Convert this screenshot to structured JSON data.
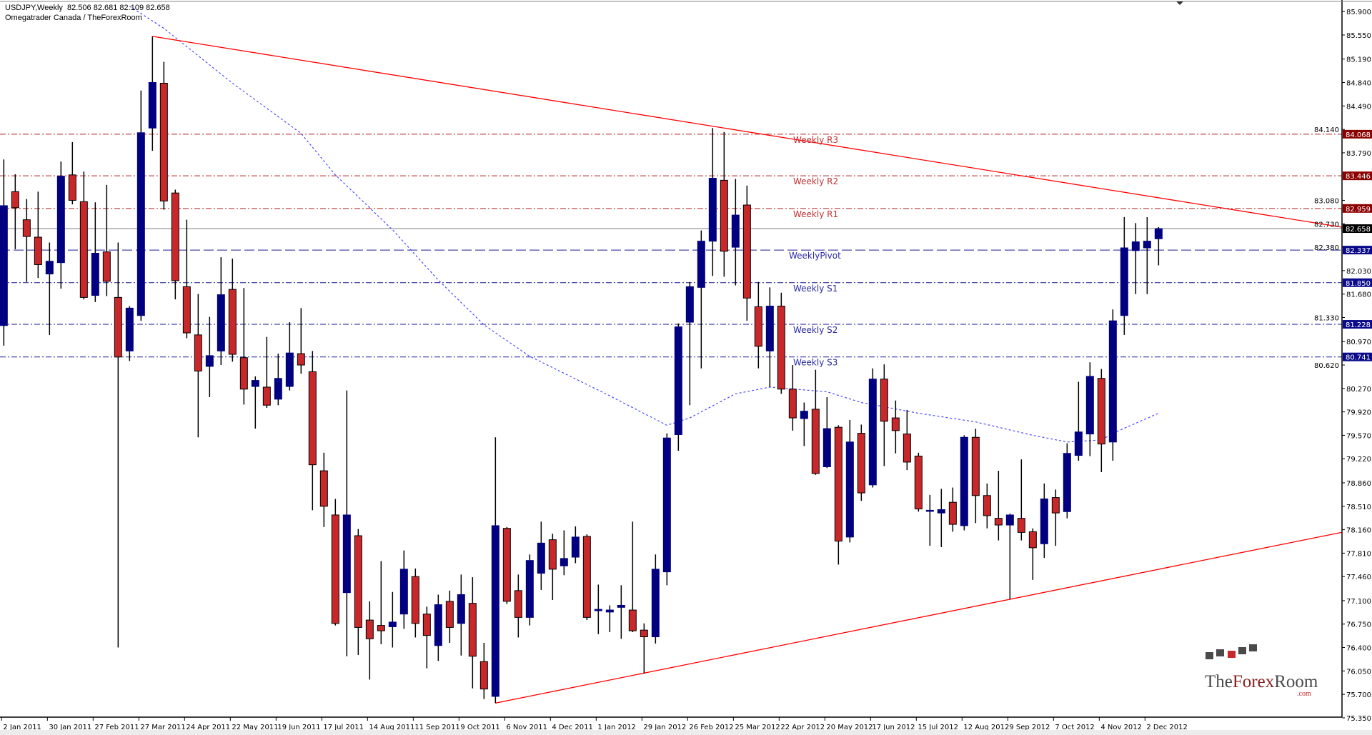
{
  "header": {
    "line1": "USDJPY,Weekly  82.506 82.681 82.109 82.658",
    "line2": "Omegatrader Canada / TheForexRoom"
  },
  "colors": {
    "bull": "#000080",
    "bear": "#c8282a",
    "wick": "#000000",
    "resistance": "#b22222",
    "resistance_label_bg": "#8b0000",
    "support": "#1a1a9a",
    "support_label_bg": "#0a0a8a",
    "ma": "#4a4aff",
    "trendline": "#ff0000",
    "current_price": "#808080"
  },
  "logo": {
    "text_a": "The",
    "text_b": "Forex",
    "text_c": "Room",
    "suffix": ".com"
  },
  "chart_data": {
    "type": "candlestick",
    "symbol": "USDJPY",
    "timeframe": "Weekly",
    "ylim": [
      75.36,
      86.03
    ],
    "grid": false,
    "y_ticks": [
      "85.900",
      "85.550",
      "85.190",
      "84.840",
      "84.490",
      "84.140",
      "83.790",
      "83.080",
      "82.730",
      "82.380",
      "82.030",
      "81.680",
      "81.330",
      "80.970",
      "80.620",
      "80.270",
      "79.920",
      "79.570",
      "79.220",
      "78.860",
      "78.510",
      "78.160",
      "77.810",
      "77.460",
      "77.100",
      "76.750",
      "76.400",
      "76.050",
      "75.700",
      "75.350"
    ],
    "x_ticks": [
      "2 Jan 2011",
      "30 Jan 2011",
      "27 Feb 2011",
      "27 Mar 2011",
      "24 Apr 2011",
      "22 May 2011",
      "19 Jun 2011",
      "17 Jul 2011",
      "14 Aug 2011",
      "11 Sep 2011",
      "9 Oct 2011",
      "6 Nov 2011",
      "4 Dec 2011",
      "1 Jan 2012",
      "29 Jan 2012",
      "26 Feb 2012",
      "25 Mar 2012",
      "22 Apr 2012",
      "20 May 2012",
      "17 Jun 2012",
      "15 Jul 2012",
      "12 Aug 2012",
      "9 Sep 2012",
      "7 Oct 2012",
      "4 Nov 2012",
      "2 Dec 2012"
    ],
    "candle_fields": [
      "date",
      "open",
      "high",
      "low",
      "close"
    ],
    "candles": [
      [
        "2011-01-02",
        81.21,
        83.69,
        80.91,
        83.0
      ],
      [
        "2011-01-09",
        83.21,
        83.47,
        82.35,
        82.97
      ],
      [
        "2011-01-16",
        82.79,
        83.1,
        81.86,
        82.54
      ],
      [
        "2011-01-23",
        82.53,
        83.21,
        81.92,
        82.12
      ],
      [
        "2011-01-30",
        81.98,
        82.45,
        81.07,
        82.17
      ],
      [
        "2011-02-06",
        82.15,
        83.66,
        81.76,
        83.44
      ],
      [
        "2011-02-13",
        83.46,
        83.95,
        83.02,
        83.08
      ],
      [
        "2011-02-20",
        83.06,
        83.51,
        81.6,
        81.63
      ],
      [
        "2011-02-27",
        81.66,
        83.05,
        81.56,
        82.29
      ],
      [
        "2011-03-06",
        82.31,
        83.31,
        81.65,
        81.87
      ],
      [
        "2011-03-13",
        81.63,
        82.45,
        76.4,
        80.74
      ],
      [
        "2011-03-20",
        80.83,
        81.5,
        80.68,
        81.47
      ],
      [
        "2011-03-27",
        81.36,
        84.72,
        81.28,
        84.09
      ],
      [
        "2011-04-03",
        84.16,
        85.53,
        83.82,
        84.84
      ],
      [
        "2011-04-10",
        84.83,
        85.15,
        82.94,
        83.07
      ],
      [
        "2011-04-17",
        83.19,
        83.24,
        81.6,
        81.88
      ],
      [
        "2011-04-24",
        81.79,
        82.79,
        81.02,
        81.1
      ],
      [
        "2011-05-01",
        81.07,
        81.68,
        79.54,
        80.53
      ],
      [
        "2011-05-08",
        80.6,
        81.34,
        80.14,
        80.76
      ],
      [
        "2011-05-15",
        80.83,
        82.23,
        80.62,
        81.67
      ],
      [
        "2011-05-22",
        81.75,
        82.21,
        80.67,
        80.78
      ],
      [
        "2011-05-29",
        80.73,
        81.77,
        80.03,
        80.26
      ],
      [
        "2011-06-05",
        80.3,
        80.45,
        79.67,
        80.39
      ],
      [
        "2011-06-12",
        80.29,
        81.04,
        79.98,
        80.02
      ],
      [
        "2011-06-19",
        80.11,
        80.79,
        80.02,
        80.42
      ],
      [
        "2011-06-26",
        80.3,
        81.26,
        80.24,
        80.8
      ],
      [
        "2011-07-03",
        80.79,
        81.47,
        80.49,
        80.62
      ],
      [
        "2011-07-10",
        80.52,
        80.83,
        78.45,
        79.13
      ],
      [
        "2011-07-17",
        79.04,
        79.31,
        78.2,
        78.51
      ],
      [
        "2011-07-24",
        78.38,
        78.62,
        76.73,
        76.76
      ],
      [
        "2011-07-31",
        77.22,
        80.24,
        76.27,
        78.38
      ],
      [
        "2011-08-07",
        78.07,
        78.17,
        76.29,
        76.7
      ],
      [
        "2011-08-14",
        76.81,
        77.09,
        75.92,
        76.53
      ],
      [
        "2011-08-21",
        76.73,
        77.69,
        76.45,
        76.65
      ],
      [
        "2011-08-28",
        76.71,
        77.23,
        76.4,
        76.78
      ],
      [
        "2011-09-04",
        76.9,
        77.85,
        76.68,
        77.57
      ],
      [
        "2011-09-11",
        77.46,
        77.58,
        76.55,
        76.76
      ],
      [
        "2011-09-18",
        76.9,
        77.01,
        76.09,
        76.58
      ],
      [
        "2011-09-25",
        76.43,
        77.19,
        76.2,
        77.04
      ],
      [
        "2011-10-02",
        77.09,
        77.25,
        76.47,
        76.7
      ],
      [
        "2011-10-09",
        76.76,
        77.49,
        76.28,
        77.19
      ],
      [
        "2011-10-16",
        77.06,
        77.45,
        75.79,
        76.27
      ],
      [
        "2011-10-23",
        76.19,
        76.47,
        75.63,
        75.78
      ],
      [
        "2011-10-30",
        75.67,
        79.54,
        75.57,
        78.22
      ],
      [
        "2011-11-06",
        78.18,
        78.2,
        77.05,
        77.09
      ],
      [
        "2011-11-13",
        77.25,
        77.49,
        76.55,
        76.85
      ],
      [
        "2011-11-20",
        76.85,
        77.79,
        76.73,
        77.7
      ],
      [
        "2011-11-27",
        77.51,
        78.28,
        77.26,
        77.96
      ],
      [
        "2011-12-04",
        78.01,
        78.1,
        77.11,
        77.57
      ],
      [
        "2011-12-11",
        77.62,
        78.15,
        77.48,
        77.73
      ],
      [
        "2011-12-18",
        77.75,
        78.21,
        77.66,
        78.05
      ],
      [
        "2011-12-25",
        78.06,
        78.09,
        76.81,
        76.85
      ],
      [
        "2012-01-01",
        76.95,
        77.34,
        76.6,
        76.97
      ],
      [
        "2012-01-08",
        76.93,
        77.03,
        76.63,
        76.96
      ],
      [
        "2012-01-15",
        77.0,
        77.33,
        76.53,
        77.03
      ],
      [
        "2012-01-22",
        76.96,
        78.28,
        76.63,
        76.65
      ],
      [
        "2012-01-29",
        76.66,
        76.76,
        76.01,
        76.56
      ],
      [
        "2012-02-05",
        76.56,
        77.79,
        76.46,
        77.57
      ],
      [
        "2012-02-12",
        77.53,
        79.6,
        77.33,
        79.53
      ],
      [
        "2012-02-19",
        79.58,
        81.24,
        79.34,
        81.19
      ],
      [
        "2012-02-26",
        81.26,
        81.86,
        80.02,
        81.79
      ],
      [
        "2012-03-04",
        81.78,
        82.63,
        80.57,
        82.47
      ],
      [
        "2012-03-11",
        82.47,
        84.16,
        81.95,
        83.41
      ],
      [
        "2012-03-18",
        83.38,
        84.1,
        81.94,
        82.32
      ],
      [
        "2012-03-25",
        82.38,
        83.4,
        81.81,
        82.86
      ],
      [
        "2012-04-01",
        83.01,
        83.3,
        81.28,
        81.62
      ],
      [
        "2012-04-08",
        81.49,
        81.86,
        80.57,
        80.9
      ],
      [
        "2012-04-15",
        80.83,
        81.78,
        80.29,
        81.5
      ],
      [
        "2012-04-22",
        81.5,
        81.7,
        80.19,
        80.26
      ],
      [
        "2012-04-29",
        80.26,
        80.62,
        79.64,
        79.83
      ],
      [
        "2012-05-06",
        79.82,
        80.06,
        79.41,
        79.93
      ],
      [
        "2012-05-13",
        79.96,
        80.55,
        78.98,
        79.0
      ],
      [
        "2012-05-20",
        79.1,
        80.14,
        79.08,
        79.67
      ],
      [
        "2012-05-27",
        79.69,
        79.72,
        77.64,
        77.99
      ],
      [
        "2012-06-03",
        78.05,
        79.8,
        77.97,
        79.47
      ],
      [
        "2012-06-10",
        79.6,
        79.73,
        78.59,
        78.71
      ],
      [
        "2012-06-17",
        78.83,
        80.57,
        78.79,
        80.41
      ],
      [
        "2012-06-24",
        80.41,
        80.63,
        79.11,
        79.78
      ],
      [
        "2012-07-01",
        79.83,
        80.09,
        79.3,
        79.64
      ],
      [
        "2012-07-08",
        79.59,
        79.95,
        79.05,
        79.17
      ],
      [
        "2012-07-15",
        79.26,
        79.31,
        78.43,
        78.47
      ],
      [
        "2012-07-22",
        78.44,
        78.68,
        77.92,
        78.45
      ],
      [
        "2012-07-29",
        78.41,
        78.77,
        77.9,
        78.46
      ],
      [
        "2012-08-05",
        78.57,
        78.79,
        78.13,
        78.24
      ],
      [
        "2012-08-12",
        78.22,
        79.57,
        78.15,
        79.54
      ],
      [
        "2012-08-19",
        79.54,
        79.67,
        78.26,
        78.67
      ],
      [
        "2012-08-26",
        78.67,
        78.85,
        78.18,
        78.37
      ],
      [
        "2012-09-02",
        78.33,
        79.04,
        78.0,
        78.23
      ],
      [
        "2012-09-09",
        78.23,
        78.4,
        77.12,
        78.38
      ],
      [
        "2012-09-16",
        78.33,
        79.21,
        78.0,
        78.12
      ],
      [
        "2012-09-23",
        78.13,
        78.18,
        77.41,
        77.89
      ],
      [
        "2012-09-30",
        77.95,
        78.85,
        77.74,
        78.62
      ],
      [
        "2012-10-07",
        78.64,
        78.76,
        77.92,
        78.41
      ],
      [
        "2012-10-14",
        78.43,
        79.45,
        78.33,
        79.3
      ],
      [
        "2012-10-21",
        79.27,
        80.37,
        79.19,
        79.62
      ],
      [
        "2012-10-28",
        79.59,
        80.66,
        79.26,
        80.45
      ],
      [
        "2012-11-04",
        80.42,
        80.56,
        79.02,
        79.44
      ],
      [
        "2012-11-11",
        79.47,
        81.45,
        79.19,
        81.28
      ],
      [
        "2012-11-18",
        81.36,
        82.83,
        81.07,
        82.37
      ],
      [
        "2012-11-25",
        82.33,
        82.74,
        81.68,
        82.46
      ],
      [
        "2012-12-02",
        82.37,
        82.83,
        81.68,
        82.47
      ],
      [
        "2012-12-09",
        82.506,
        82.681,
        82.109,
        82.658
      ]
    ],
    "moving_average": [
      [
        "2011-03-20",
        85.98
      ],
      [
        "2011-04-10",
        85.65
      ],
      [
        "2011-05-22",
        84.83
      ],
      [
        "2011-07-03",
        84.08
      ],
      [
        "2011-07-24",
        83.46
      ],
      [
        "2011-08-28",
        82.64
      ],
      [
        "2011-09-25",
        81.89
      ],
      [
        "2011-10-23",
        81.22
      ],
      [
        "2011-11-20",
        80.75
      ],
      [
        "2012-01-08",
        80.16
      ],
      [
        "2012-02-12",
        79.72
      ],
      [
        "2012-02-26",
        79.83
      ],
      [
        "2012-03-25",
        80.19
      ],
      [
        "2012-04-15",
        80.29
      ],
      [
        "2012-05-20",
        80.22
      ],
      [
        "2012-06-10",
        80.06
      ],
      [
        "2012-07-15",
        79.9
      ],
      [
        "2012-08-19",
        79.77
      ],
      [
        "2012-09-23",
        79.57
      ],
      [
        "2012-10-14",
        79.47
      ],
      [
        "2012-11-04",
        79.5
      ],
      [
        "2012-11-11",
        79.6
      ],
      [
        "2012-12-09",
        79.9
      ]
    ],
    "trendlines": [
      {
        "from": [
          "2011-04-03",
          85.53
        ],
        "to": [
          "2013-03-31",
          82.68
        ]
      },
      {
        "from": [
          "2011-10-30",
          75.57
        ],
        "to": [
          "2013-03-31",
          78.12
        ]
      }
    ],
    "levels": [
      {
        "name": "Weekly R3",
        "value": "84.068",
        "kind": "resistance"
      },
      {
        "name": "Weekly R2",
        "value": "83.446",
        "kind": "resistance"
      },
      {
        "name": "Weekly R1",
        "value": "82.959",
        "kind": "resistance"
      },
      {
        "name": "WeeklyPivot",
        "value": "82.337",
        "kind": "pivot"
      },
      {
        "name": "Weekly S1",
        "value": "81.850",
        "kind": "support"
      },
      {
        "name": "Weekly S2",
        "value": "81.228",
        "kind": "support"
      },
      {
        "name": "Weekly S3",
        "value": "80.741",
        "kind": "support"
      }
    ],
    "current_price": "82.658"
  }
}
